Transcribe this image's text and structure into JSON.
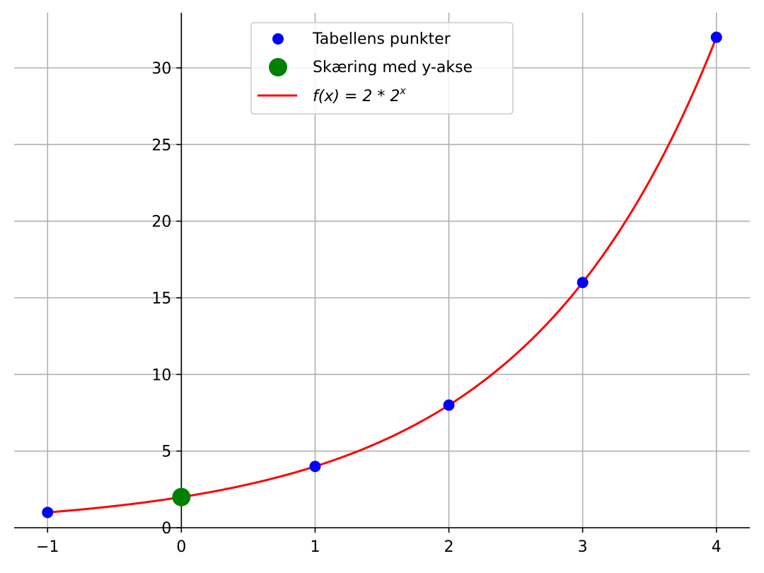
{
  "chart_data": {
    "type": "line",
    "title": "",
    "xlabel": "",
    "ylabel": "",
    "xlim": [
      -1.25,
      4.25
    ],
    "ylim": [
      0,
      33.6
    ],
    "x_ticks": [
      -1,
      0,
      1,
      2,
      3,
      4
    ],
    "x_tick_labels": [
      "−1",
      "0",
      "1",
      "2",
      "3",
      "4"
    ],
    "y_ticks": [
      0,
      5,
      10,
      15,
      20,
      25,
      30
    ],
    "y_tick_labels": [
      "0",
      "5",
      "10",
      "15",
      "20",
      "25",
      "30"
    ],
    "grid": true,
    "legend_position": "top-center",
    "series": [
      {
        "name": "Tabellens punkter",
        "kind": "scatter",
        "color": "#0000ff",
        "x": [
          -1,
          1,
          2,
          3,
          4
        ],
        "y": [
          1,
          4,
          8,
          16,
          32
        ]
      },
      {
        "name": "Skæring med y-akse",
        "kind": "scatter",
        "color": "#008000",
        "x": [
          0
        ],
        "y": [
          2
        ]
      },
      {
        "name": "f(x) = 2 * 2^x",
        "kind": "line",
        "color": "#ff0000",
        "function": "2*2^x",
        "x_range": [
          -1,
          4
        ]
      }
    ]
  },
  "legend": {
    "items": [
      {
        "label": "Tabellens punkter",
        "marker": "dot",
        "color": "#0000ff"
      },
      {
        "label": "Skæring med y-akse",
        "marker": "big-dot",
        "color": "#008000"
      },
      {
        "label_prefix": "f(x) = 2 * 2",
        "label_sup": "x",
        "marker": "line",
        "color": "#ff0000"
      }
    ]
  }
}
